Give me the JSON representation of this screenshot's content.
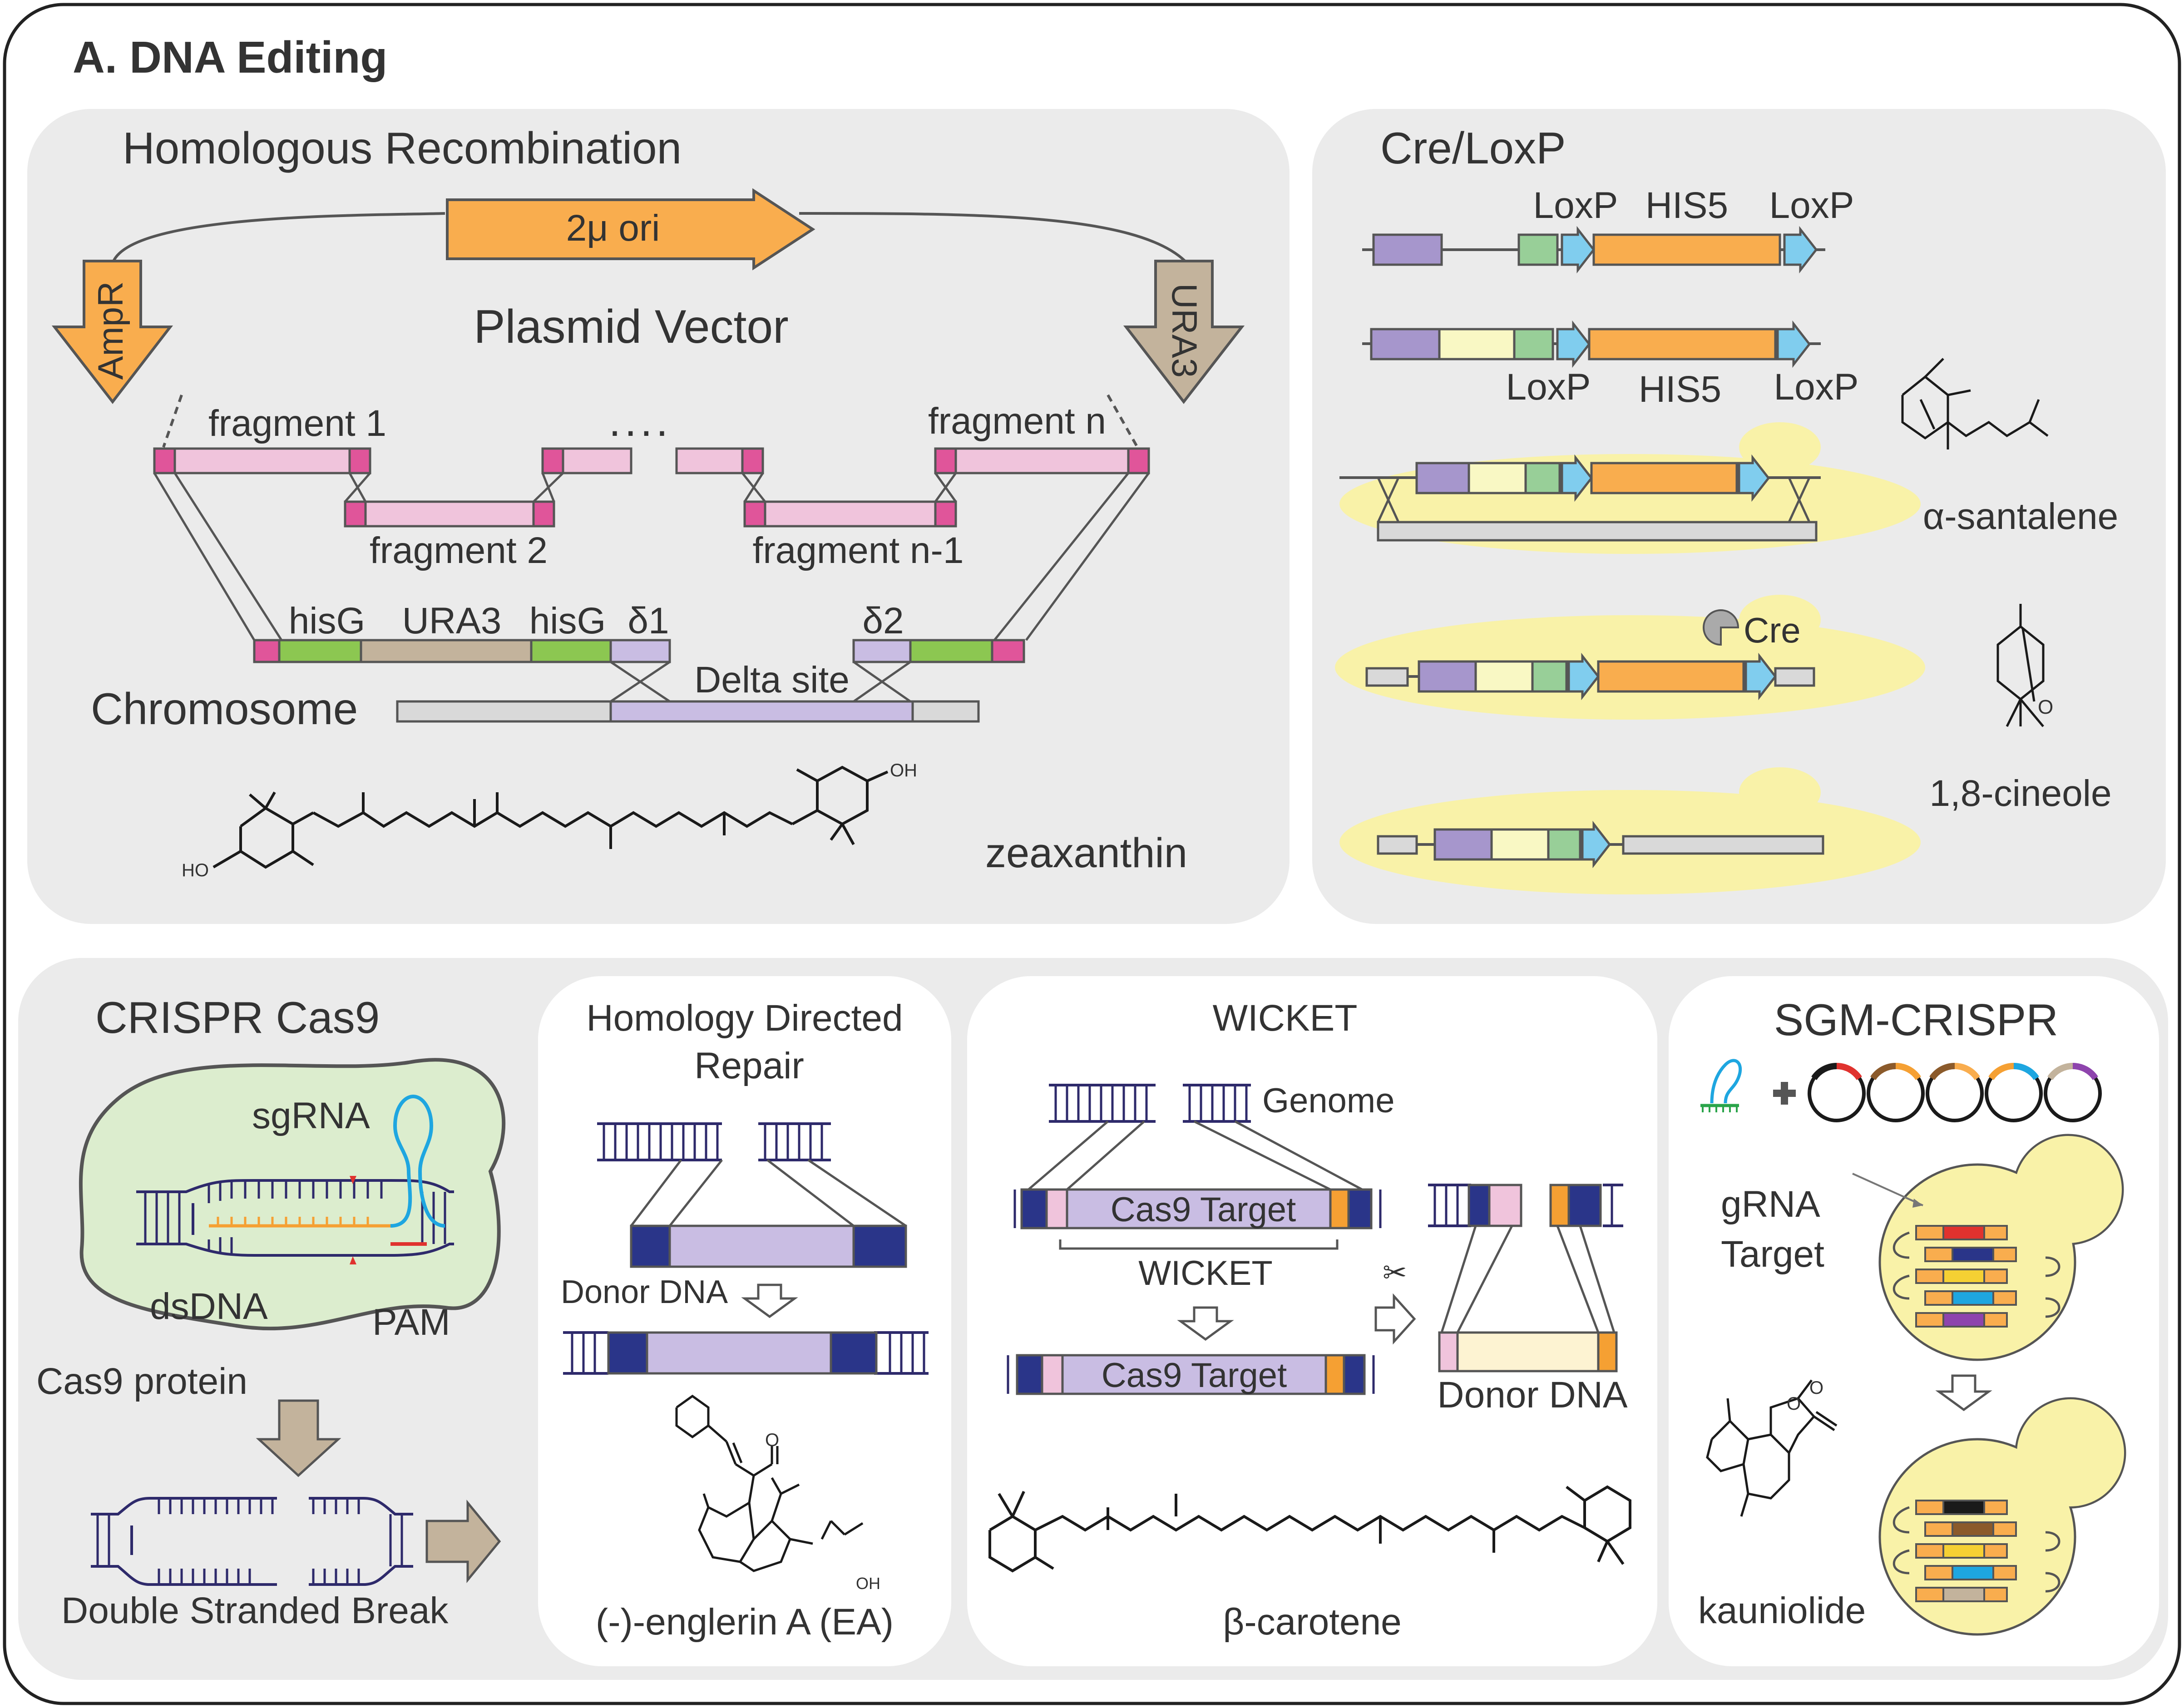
{
  "main_title": "A. DNA Editing",
  "colors": {
    "outer_border": "#222222",
    "panel_fill": "#ebebeb",
    "inner_panel_fill": "#ffffff",
    "pink": "#f0c4dc",
    "magenta": "#e0559a",
    "orange": "#f9ad4e",
    "tan": "#c3b39c",
    "green": "#8cc751",
    "lavender": "#c9bde3",
    "violet": "#a696cc",
    "pale_yellow": "#f9f8c4",
    "mint": "#98cf98",
    "sky": "#80cdee",
    "gray_bar": "#d9d9d9",
    "yeast": "#f9f2a8",
    "cell_green": "#dcedce",
    "navy": "#2a3589",
    "dna": "#2e2a6b",
    "cyan_rna": "#1ea6e0",
    "sg_orange": "#f5a033",
    "pam_red": "#e0322e",
    "cream": "#fdf3d2"
  },
  "hr": {
    "title": "Homologous Recombination",
    "ori_label": "2μ ori",
    "ampr_label": "AmpR",
    "ura3_label": "URA3",
    "plasmid_label": "Plasmid Vector",
    "fragment1": "fragment 1",
    "fragment2": "fragment 2",
    "fragment_dots": "....",
    "fragment_n": "fragment n",
    "fragment_n1": "fragment n-1",
    "hisg1": "hisG",
    "ura3_chr": "URA3",
    "hisg2": "hisG",
    "delta1": "δ1",
    "delta2": "δ2",
    "delta_site": "Delta site",
    "chromosome": "Chromosome",
    "compound": "zeaxanthin",
    "ho_top": "OH",
    "ho_bottom": "HO"
  },
  "cre": {
    "title": "Cre/LoxP",
    "loxp_a": "LoxP",
    "his5_a": "HIS5",
    "loxp_b": "LoxP",
    "loxp_c": "LoxP",
    "his5_b": "HIS5",
    "loxp_d": "LoxP",
    "cre_label": "Cre",
    "compound1": "α-santalene",
    "compound2": "1,8-cineole",
    "o_atom": "O"
  },
  "crispr": {
    "title": "CRISPR Cas9",
    "sgrna": "sgRNA",
    "dsdna": "dsDNA",
    "pam": "PAM",
    "protein": "Cas9 protein",
    "dsb": "Double Stranded Break"
  },
  "hdr": {
    "title_line1": "Homology Directed",
    "title_line2": "Repair",
    "donor": "Donor DNA",
    "compound": "(-)-englerin A (EA)",
    "o_atom": "O",
    "oh": "OH"
  },
  "wicket": {
    "title": "WICKET",
    "genome": "Genome",
    "cas9_target_1": "Cas9 Target",
    "wicket_label": "WICKET",
    "cas9_target_2": "Cas9 Target",
    "donor": "Donor DNA",
    "compound": "β-carotene",
    "scissors": "✂"
  },
  "sgm": {
    "title": "SGM-CRISPR",
    "grna_line1": "gRNA",
    "grna_line2": "Target",
    "compound": "kauniolide",
    "o1": "O",
    "o2": "O",
    "plasmid_colors": [
      [
        "#1a1a1a",
        "#e0322e"
      ],
      [
        "#8b5a2b",
        "#f5a033"
      ],
      [
        "#8b5a2b",
        "#f9ad4e"
      ],
      [
        "#f5a033",
        "#1ea6e0"
      ],
      [
        "#c3b39c",
        "#8e44ad"
      ]
    ],
    "cassette_colors_a": [
      "#e0322e",
      "#2a3589",
      "#f5d033",
      "#1ea6e0",
      "#8e44ad"
    ],
    "cassette_colors_b": [
      "#1a1a1a",
      "#8b5a2b",
      "#f5d033",
      "#1ea6e0",
      "#c3b39c"
    ]
  }
}
